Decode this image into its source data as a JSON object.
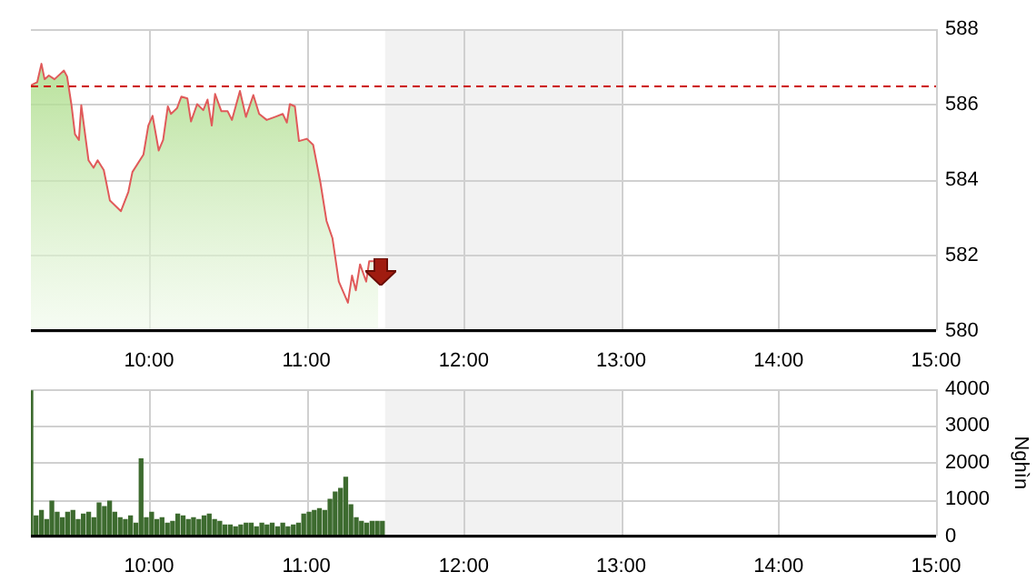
{
  "chart_data": [
    {
      "type": "area",
      "x": [
        9.25,
        9.29,
        9.317,
        9.337,
        9.364,
        9.4,
        9.46,
        9.48,
        9.508,
        9.53,
        9.555,
        9.57,
        9.616,
        9.648,
        9.674,
        9.713,
        9.752,
        9.822,
        9.869,
        9.895,
        9.965,
        9.996,
        10.023,
        10.062,
        10.09,
        10.12,
        10.14,
        10.178,
        10.206,
        10.244,
        10.267,
        10.306,
        10.345,
        10.372,
        10.399,
        10.42,
        10.46,
        10.5,
        10.527,
        10.578,
        10.616,
        10.663,
        10.7,
        10.748,
        10.8,
        10.85,
        10.876,
        10.895,
        10.927,
        10.953,
        11.003,
        11.043,
        11.09,
        11.128,
        11.166,
        11.206,
        11.264,
        11.29,
        11.314,
        11.341,
        11.38,
        11.399,
        11.457
      ],
      "series": [
        {
          "color": "#e05a5a",
          "values": [
            586.51,
            586.59,
            587.08,
            586.67,
            586.77,
            586.67,
            586.9,
            586.74,
            585.98,
            585.21,
            585.06,
            585.98,
            584.52,
            584.32,
            584.52,
            584.26,
            583.45,
            583.17,
            583.68,
            584.21,
            584.67,
            585.44,
            585.7,
            584.78,
            585.06,
            585.95,
            585.75,
            585.9,
            586.21,
            586.16,
            585.55,
            586.01,
            585.85,
            586.13,
            585.44,
            586.28,
            585.82,
            585.82,
            585.59,
            586.36,
            585.67,
            586.25,
            585.75,
            585.59,
            585.67,
            585.75,
            585.52,
            586.01,
            585.95,
            585.03,
            585.09,
            584.93,
            583.91,
            582.91,
            582.45,
            581.3,
            580.74,
            581.46,
            581.07,
            581.76,
            581.3,
            581.84,
            581.84
          ]
        }
      ],
      "xlim": [
        9.25,
        15
      ],
      "xticks": [
        {
          "value": 10,
          "label": "10:00"
        },
        {
          "value": 11,
          "label": "11:00"
        },
        {
          "value": 12,
          "label": "12:00"
        },
        {
          "value": 13,
          "label": "13:00"
        },
        {
          "value": 14,
          "label": "14:00"
        },
        {
          "value": 15,
          "label": "15:00"
        }
      ],
      "ylim": [
        580,
        588
      ],
      "yticks": [
        580,
        582,
        584,
        586,
        588
      ],
      "grid": true,
      "bands": [
        {
          "axis": "x",
          "from": 11.5,
          "to": 13,
          "color": "#f2f2f2"
        }
      ],
      "ref_lines": [
        {
          "axis": "y",
          "value": 586.5,
          "color": "#cc0000",
          "line_style": "dashed"
        }
      ]
    },
    {
      "type": "bar",
      "ylabel": "Nghìn",
      "x": [
        9.25,
        9.283,
        9.317,
        9.35,
        9.383,
        9.417,
        9.45,
        9.483,
        9.517,
        9.55,
        9.583,
        9.617,
        9.65,
        9.683,
        9.717,
        9.75,
        9.783,
        9.817,
        9.85,
        9.883,
        9.917,
        9.95,
        9.983,
        10.017,
        10.05,
        10.083,
        10.117,
        10.15,
        10.183,
        10.217,
        10.25,
        10.283,
        10.317,
        10.35,
        10.383,
        10.417,
        10.45,
        10.483,
        10.517,
        10.55,
        10.583,
        10.617,
        10.65,
        10.683,
        10.717,
        10.75,
        10.783,
        10.817,
        10.85,
        10.883,
        10.917,
        10.95,
        10.983,
        11.017,
        11.05,
        11.083,
        11.117,
        11.15,
        11.183,
        11.217,
        11.25,
        11.283,
        11.317,
        11.35,
        11.383,
        11.417,
        11.45,
        11.483
      ],
      "series": [
        {
          "color": "#3d6b2f",
          "values": [
            3950,
            550,
            700,
            450,
            950,
            650,
            500,
            650,
            700,
            450,
            600,
            650,
            500,
            900,
            800,
            950,
            650,
            500,
            450,
            550,
            350,
            2100,
            500,
            650,
            450,
            500,
            350,
            400,
            600,
            550,
            450,
            500,
            450,
            550,
            600,
            450,
            400,
            300,
            300,
            250,
            300,
            350,
            350,
            250,
            350,
            300,
            350,
            250,
            350,
            250,
            300,
            350,
            600,
            650,
            700,
            750,
            700,
            1000,
            1200,
            1300,
            1600,
            850,
            500,
            400,
            350,
            400,
            400,
            400
          ]
        }
      ],
      "xlim": [
        9.25,
        15
      ],
      "xticks": [
        {
          "value": 10,
          "label": "10:00"
        },
        {
          "value": 11,
          "label": "11:00"
        },
        {
          "value": 12,
          "label": "12:00"
        },
        {
          "value": 13,
          "label": "13:00"
        },
        {
          "value": 14,
          "label": "14:00"
        },
        {
          "value": 15,
          "label": "15:00"
        }
      ],
      "ylim": [
        0,
        4000
      ],
      "yticks": [
        0,
        1000,
        2000,
        3000,
        4000
      ],
      "grid": true,
      "bands": [
        {
          "axis": "x",
          "from": 11.5,
          "to": 13,
          "color": "#f2f2f2"
        }
      ]
    }
  ]
}
